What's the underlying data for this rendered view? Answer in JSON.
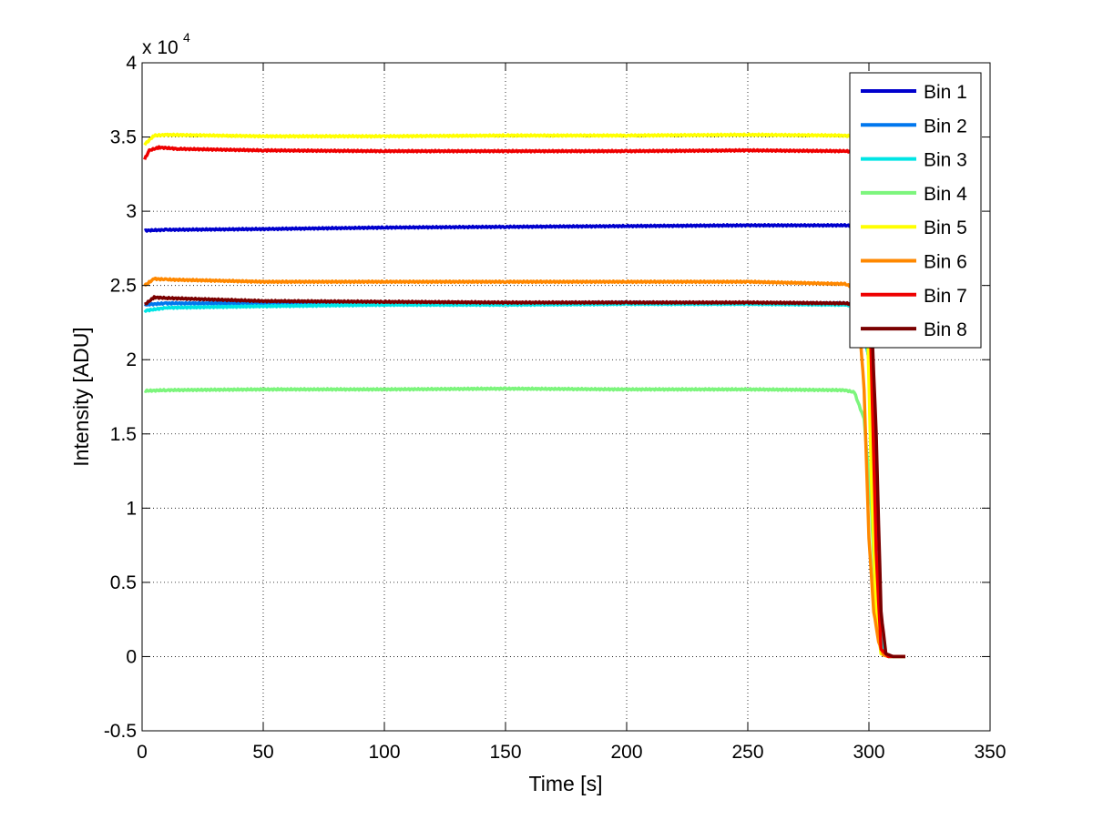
{
  "chart_data": {
    "type": "line",
    "xlabel": "Time [s]",
    "ylabel": "Intensity [ADU]",
    "y_exponent_label": "x 10",
    "y_exponent": "4",
    "xlim": [
      0,
      350
    ],
    "ylim": [
      -0.5,
      4
    ],
    "x_ticks": [
      0,
      50,
      100,
      150,
      200,
      250,
      300,
      350
    ],
    "y_ticks": [
      -0.5,
      0,
      0.5,
      1,
      1.5,
      2,
      2.5,
      3,
      3.5,
      4
    ],
    "x_tick_labels": [
      "0",
      "50",
      "100",
      "150",
      "200",
      "250",
      "300",
      "350"
    ],
    "y_tick_labels": [
      "-0.5",
      "0",
      "0.5",
      "1",
      "1.5",
      "2",
      "2.5",
      "3",
      "3.5",
      "4"
    ],
    "grid": true,
    "legend_position": "top-right",
    "series": [
      {
        "name": "Bin 1",
        "color": "#0000cd",
        "points": [
          [
            1,
            2.87
          ],
          [
            10,
            2.875
          ],
          [
            50,
            2.88
          ],
          [
            100,
            2.89
          ],
          [
            150,
            2.895
          ],
          [
            200,
            2.9
          ],
          [
            250,
            2.905
          ],
          [
            290,
            2.905
          ],
          [
            296,
            2.9
          ],
          [
            300,
            2.5
          ],
          [
            304,
            0.3
          ],
          [
            306,
            0.02
          ],
          [
            308,
            0.0
          ],
          [
            315,
            0.0
          ]
        ]
      },
      {
        "name": "Bin 2",
        "color": "#0077ee",
        "points": [
          [
            1,
            2.37
          ],
          [
            10,
            2.38
          ],
          [
            50,
            2.38
          ],
          [
            100,
            2.38
          ],
          [
            150,
            2.38
          ],
          [
            200,
            2.385
          ],
          [
            250,
            2.38
          ],
          [
            290,
            2.38
          ],
          [
            296,
            2.37
          ],
          [
            300,
            2.0
          ],
          [
            304,
            0.25
          ],
          [
            306,
            0.02
          ],
          [
            308,
            0.0
          ],
          [
            315,
            0.0
          ]
        ]
      },
      {
        "name": "Bin 3",
        "color": "#00e5e5",
        "points": [
          [
            1,
            2.33
          ],
          [
            10,
            2.35
          ],
          [
            50,
            2.36
          ],
          [
            100,
            2.37
          ],
          [
            150,
            2.37
          ],
          [
            200,
            2.375
          ],
          [
            250,
            2.375
          ],
          [
            290,
            2.37
          ],
          [
            296,
            2.36
          ],
          [
            300,
            2.0
          ],
          [
            304,
            0.25
          ],
          [
            306,
            0.02
          ],
          [
            308,
            0.0
          ],
          [
            315,
            0.0
          ]
        ]
      },
      {
        "name": "Bin 4",
        "color": "#7cf57c",
        "points": [
          [
            1,
            1.79
          ],
          [
            10,
            1.795
          ],
          [
            50,
            1.8
          ],
          [
            100,
            1.8
          ],
          [
            150,
            1.805
          ],
          [
            200,
            1.8
          ],
          [
            250,
            1.8
          ],
          [
            290,
            1.795
          ],
          [
            294,
            1.78
          ],
          [
            298,
            1.6
          ],
          [
            301,
            1.0
          ],
          [
            303,
            0.3
          ],
          [
            305,
            0.02
          ],
          [
            308,
            0.0
          ],
          [
            315,
            0.0
          ]
        ]
      },
      {
        "name": "Bin 5",
        "color": "#ffff00",
        "points": [
          [
            1,
            3.45
          ],
          [
            5,
            3.51
          ],
          [
            10,
            3.515
          ],
          [
            50,
            3.505
          ],
          [
            100,
            3.505
          ],
          [
            150,
            3.51
          ],
          [
            200,
            3.51
          ],
          [
            250,
            3.515
          ],
          [
            290,
            3.51
          ],
          [
            296,
            3.5
          ],
          [
            299,
            2.5
          ],
          [
            301,
            1.2
          ],
          [
            303,
            0.3
          ],
          [
            305,
            0.02
          ],
          [
            308,
            0.0
          ],
          [
            315,
            0.0
          ]
        ]
      },
      {
        "name": "Bin 6",
        "color": "#ff8800",
        "points": [
          [
            1,
            2.5
          ],
          [
            5,
            2.545
          ],
          [
            10,
            2.54
          ],
          [
            50,
            2.525
          ],
          [
            100,
            2.525
          ],
          [
            150,
            2.525
          ],
          [
            200,
            2.525
          ],
          [
            250,
            2.525
          ],
          [
            290,
            2.51
          ],
          [
            295,
            2.48
          ],
          [
            298,
            1.8
          ],
          [
            300,
            0.8
          ],
          [
            302,
            0.3
          ],
          [
            304,
            0.1
          ],
          [
            306,
            0.01
          ],
          [
            308,
            0.0
          ],
          [
            315,
            0.0
          ]
        ]
      },
      {
        "name": "Bin 7",
        "color": "#ee0000",
        "points": [
          [
            1,
            3.35
          ],
          [
            3,
            3.41
          ],
          [
            7,
            3.43
          ],
          [
            15,
            3.42
          ],
          [
            50,
            3.41
          ],
          [
            100,
            3.405
          ],
          [
            150,
            3.405
          ],
          [
            200,
            3.405
          ],
          [
            250,
            3.41
          ],
          [
            290,
            3.405
          ],
          [
            296,
            3.4
          ],
          [
            300,
            2.6
          ],
          [
            303,
            0.7
          ],
          [
            305,
            0.05
          ],
          [
            308,
            0.0
          ],
          [
            315,
            0.0
          ]
        ]
      },
      {
        "name": "Bin 8",
        "color": "#7a0000",
        "points": [
          [
            1,
            2.37
          ],
          [
            5,
            2.42
          ],
          [
            10,
            2.415
          ],
          [
            50,
            2.395
          ],
          [
            100,
            2.39
          ],
          [
            150,
            2.385
          ],
          [
            200,
            2.385
          ],
          [
            250,
            2.385
          ],
          [
            290,
            2.38
          ],
          [
            296,
            2.37
          ],
          [
            301,
            2.3
          ],
          [
            303,
            1.5
          ],
          [
            305,
            0.3
          ],
          [
            307,
            0.02
          ],
          [
            310,
            0.0
          ],
          [
            315,
            0.0
          ]
        ]
      }
    ]
  }
}
